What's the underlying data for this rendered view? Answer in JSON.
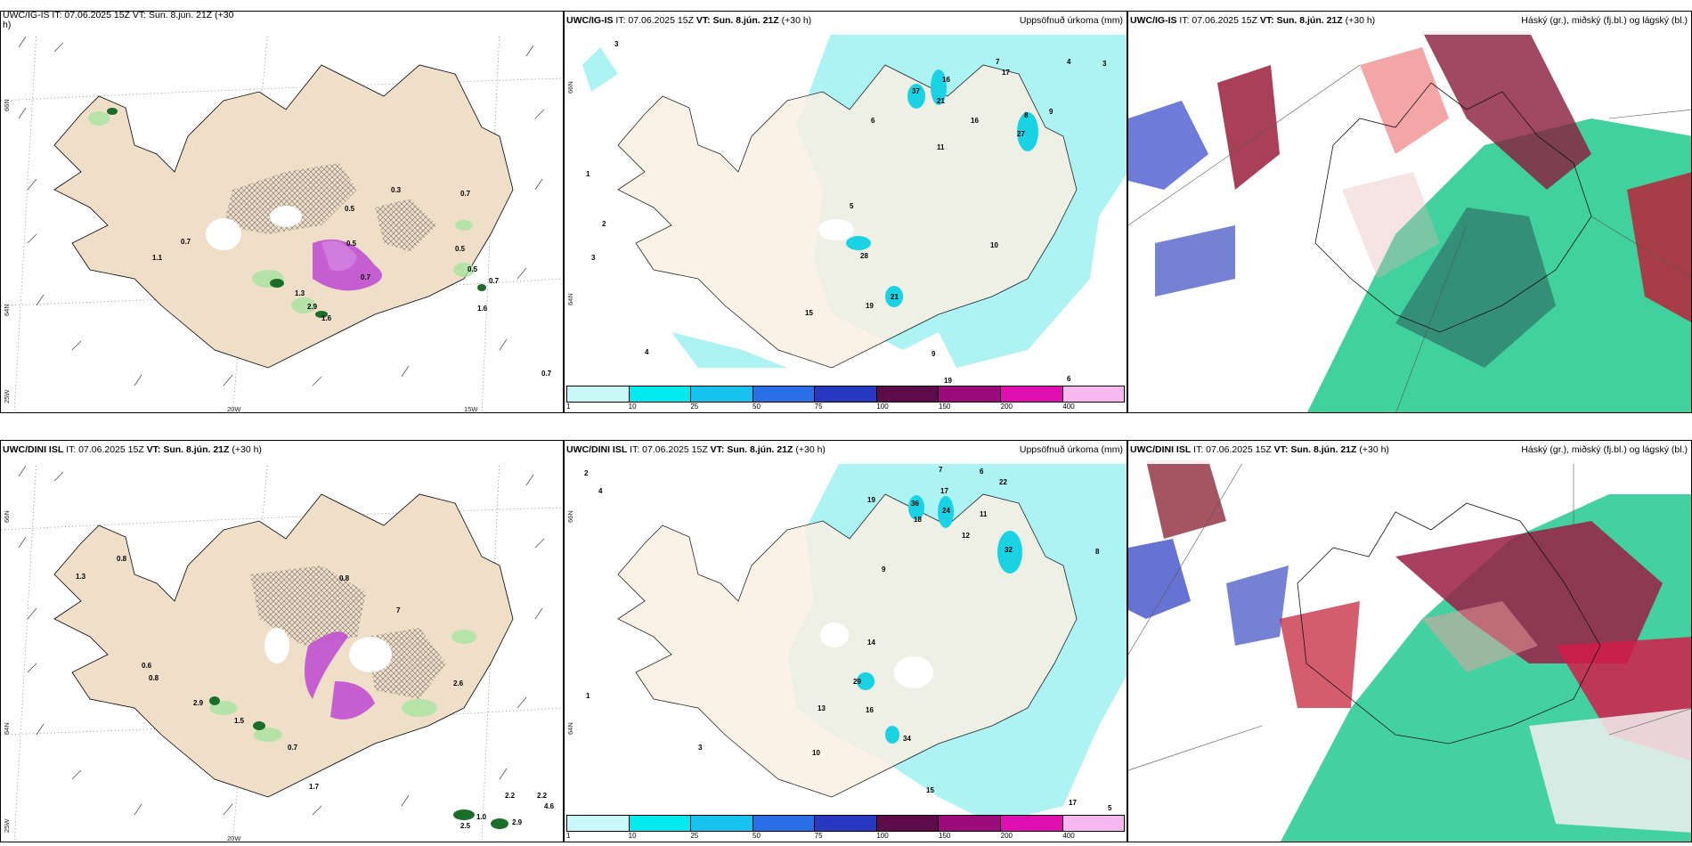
{
  "colors": {
    "land": "#f0dfc8",
    "sea": "#ffffff",
    "precip": "#aef3f3",
    "precip_strong": "#19d2e4"
  },
  "panels": {
    "tl": {
      "title_trunc": "UWC/IG-IS   IT: 07.06.2025 15Z  VT: Sun. 8.jún. 21Z (+30",
      "title_wrap": "h)",
      "lat1": "66N",
      "lat2": "64N",
      "lat3": "25W",
      "lon1": "20W",
      "lon2": "15W",
      "values": [
        "1.1",
        "0.7",
        "0.5",
        "0.5",
        "0.7",
        "0.5",
        "0.7",
        "1.6",
        "1.3",
        "2.9",
        "1.6",
        "0.5",
        "0.7",
        "0.3",
        "0.7"
      ]
    },
    "tm": {
      "source": "UWC/IG-IS",
      "issue": "IT: 07.06.2025 15Z",
      "valid": "VT: Sun. 8.jún. 21Z",
      "lead": "(+30 h)",
      "desc": "Uppsöfnuð úrkoma (mm)",
      "lat1": "66N",
      "lat2": "64N",
      "values": [
        "3",
        "6",
        "37",
        "16",
        "21",
        "16",
        "27",
        "17",
        "4",
        "3",
        "7",
        "8",
        "9",
        "11",
        "28",
        "19",
        "21",
        "10",
        "15",
        "9",
        "5",
        "4",
        "3",
        "2",
        "1",
        "6",
        "19"
      ]
    },
    "tr": {
      "source": "UWC/IG-IS",
      "issue": "IT: 07.06.2025 15Z",
      "valid": "VT: Sun. 8.jún. 21Z",
      "lead": "(+30 h)",
      "desc": "Háský (gr.), miðský (fj.bl.) og lágský (bl.)"
    },
    "bl": {
      "title": "UWC/DINI ISL",
      "issue": "IT: 07.06.2025 15Z",
      "valid": "VT: Sun. 8.jún. 21Z",
      "lead": "(+30 h)",
      "lat1": "66N",
      "lat2": "64N",
      "lat3": "25W",
      "lon1": "20W",
      "values": [
        "1.3",
        "0.8",
        "0.6",
        "0.8",
        "2.6",
        "2.9",
        "1.5",
        "0.7",
        "0.8",
        "7",
        "1.7",
        "2.2",
        "2.2",
        "4.6",
        "2.5",
        "1.0",
        "2.9"
      ]
    },
    "bm": {
      "source": "UWC/DINI ISL",
      "issue": "IT: 07.06.2025 15Z",
      "valid": "VT: Sun. 8.jún. 21Z",
      "lead": "(+30 h)",
      "desc": "Uppsöfnuð úrkoma (mm)",
      "lat1": "66N",
      "lat2": "64N",
      "values": [
        "36",
        "24",
        "17",
        "22",
        "32",
        "18",
        "29",
        "14",
        "16",
        "34",
        "15",
        "12",
        "10",
        "11",
        "19",
        "13",
        "9",
        "7",
        "6",
        "4",
        "3",
        "2",
        "1",
        "5",
        "8",
        "17"
      ]
    },
    "br": {
      "source": "UWC/DINI ISL",
      "issue": "IT: 07.06.2025 15Z",
      "valid": "VT: Sun. 8.jún. 21Z",
      "lead": "(+30 h)",
      "desc": "Háský (gr.), miðský (fj.bl.) og lágský (bl.)"
    }
  },
  "colorbar": {
    "ticks": [
      "1",
      "10",
      "25",
      "50",
      "75",
      "100",
      "150",
      "200",
      "400"
    ],
    "colors": [
      "#c8f8f8",
      "#00eaf0",
      "#18c2ee",
      "#2a6fe8",
      "#2838c0",
      "#5e0b4a",
      "#9c0b7a",
      "#e010b0",
      "#f6b8ee"
    ]
  }
}
